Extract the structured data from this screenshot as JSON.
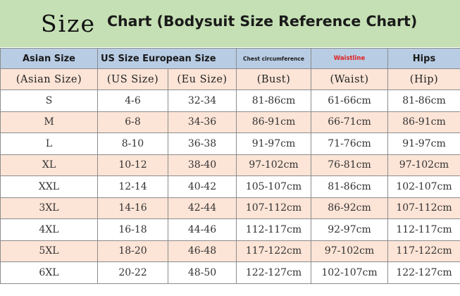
{
  "title": {
    "word": "Size",
    "rest": "Chart (Bodysuit Size Reference Chart)"
  },
  "header": {
    "asian": "Asian Size",
    "us_euro": "US Size European Size",
    "chest": "Chest circumference",
    "waist": "Waistline",
    "hips": "Hips"
  },
  "subheader": [
    "(Asian Size)",
    "(US Size)",
    "(Eu Size)",
    "(Bust)",
    "(Waist)",
    "(Hip)"
  ],
  "rows": [
    [
      "S",
      "4-6",
      "32-34",
      "81-86cm",
      "61-66cm",
      "81-86cm"
    ],
    [
      "M",
      "6-8",
      "34-36",
      "86-91cm",
      "66-71cm",
      "86-91cm"
    ],
    [
      "L",
      "8-10",
      "36-38",
      "91-97cm",
      "71-76cm",
      "91-97cm"
    ],
    [
      "XL",
      "10-12",
      "38-40",
      "97-102cm",
      "76-81cm",
      "97-102cm"
    ],
    [
      "XXL",
      "12-14",
      "40-42",
      "105-107cm",
      "81-86cm",
      "102-107cm"
    ],
    [
      "3XL",
      "14-16",
      "42-44",
      "107-112cm",
      "86-92cm",
      "107-112cm"
    ],
    [
      "4XL",
      "16-18",
      "44-46",
      "112-117cm",
      "92-97cm",
      "112-117cm"
    ],
    [
      "5XL",
      "18-20",
      "46-48",
      "117-122cm",
      "97-102cm",
      "117-122cm"
    ],
    [
      "6XL",
      "20-22",
      "48-50",
      "122-127cm",
      "102-107cm",
      "122-127cm"
    ]
  ],
  "colors": {
    "banner": "#c5e0b4",
    "header": "#b8cce4",
    "pink": "#fce4d6",
    "waist_header": "#e02020"
  }
}
